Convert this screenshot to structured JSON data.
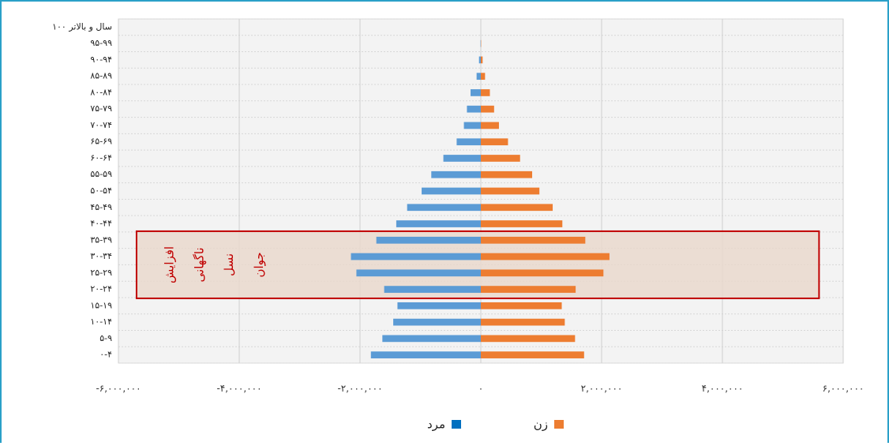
{
  "chart_data": {
    "type": "bar",
    "orientation": "horizontal",
    "categories": [
      "۱۰۰ سال و بالاتر",
      "۹۵-۹۹",
      "۹۰-۹۴",
      "۸۵-۸۹",
      "۸۰-۸۴",
      "۷۵-۷۹",
      "۷۰-۷۴",
      "۶۵-۶۹",
      "۶۰-۶۴",
      "۵۵-۵۹",
      "۵۰-۵۴",
      "۴۵-۴۹",
      "۴۰-۴۴",
      "۳۵-۳۹",
      "۳۰-۳۴",
      "۲۵-۲۹",
      "۲۰-۲۴",
      "۱۵-۱۹",
      "۱۰-۱۴",
      "۵-۹",
      "۰-۴"
    ],
    "series": [
      {
        "name": "مرد",
        "color": "#5b9bd5",
        "values": [
          0,
          -5000,
          -30000,
          -70000,
          -170000,
          -230000,
          -280000,
          -400000,
          -620000,
          -820000,
          -980000,
          -1220000,
          -1400000,
          -1730000,
          -2150000,
          -2060000,
          -1600000,
          -1380000,
          -1450000,
          -1630000,
          -1820000
        ]
      },
      {
        "name": "زن",
        "color": "#ed7d31",
        "values": [
          0,
          5000,
          30000,
          70000,
          150000,
          220000,
          300000,
          450000,
          650000,
          850000,
          970000,
          1190000,
          1350000,
          1730000,
          2130000,
          2030000,
          1570000,
          1340000,
          1390000,
          1560000,
          1710000
        ]
      }
    ],
    "xlim": [
      -6000000,
      6000000
    ],
    "x_ticks": [
      -6000000,
      -4000000,
      -2000000,
      0,
      2000000,
      4000000,
      6000000
    ],
    "x_tick_labels": [
      "-۶,۰۰۰,۰۰۰",
      "-۴,۰۰۰,۰۰۰",
      "-۲,۰۰۰,۰۰۰",
      "۰",
      "۲,۰۰۰,۰۰۰",
      "۴,۰۰۰,۰۰۰",
      "۶,۰۰۰,۰۰۰"
    ],
    "grid": true,
    "legend_position": "bottom",
    "legend": [
      {
        "label": "مرد",
        "color": "#0070c0"
      },
      {
        "label": "زن",
        "color": "#ed7d31"
      }
    ],
    "annotation": {
      "lines": [
        "افزایش",
        "ناگهانی",
        "نسل",
        "جوان"
      ],
      "color": "#c00000",
      "highlighted_categories": [
        "۳۵-۳۹",
        "۳۰-۳۴",
        "۲۵-۲۹",
        "۲۰-۲۴"
      ]
    }
  }
}
